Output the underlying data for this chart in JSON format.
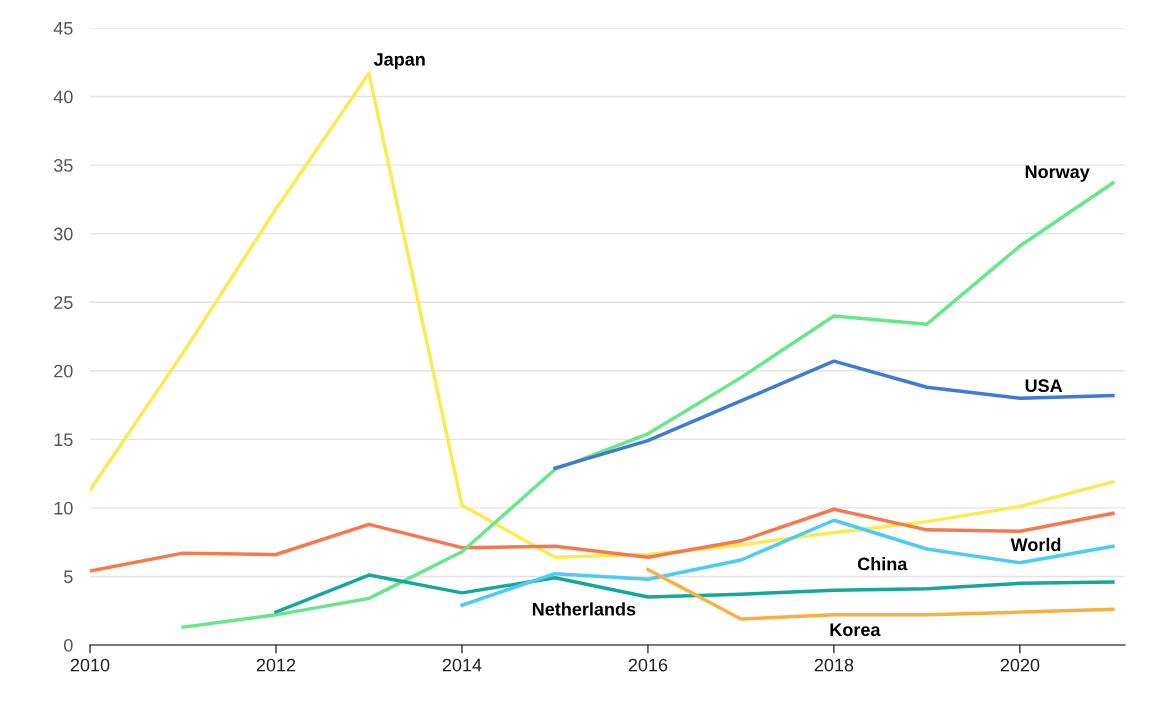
{
  "chart_data": {
    "type": "line",
    "x": [
      2010,
      2011,
      2012,
      2013,
      2014,
      2015,
      2016,
      2017,
      2018,
      2019,
      2020,
      2021
    ],
    "series": [
      {
        "name": "Japan",
        "color": "#f8ec52",
        "values": [
          11.3,
          21.3,
          31.8,
          41.7,
          10.2,
          6.4,
          6.6,
          7.3,
          8.2,
          9.0,
          10.1,
          11.9
        ]
      },
      {
        "name": "World",
        "color": "#f7784c",
        "values": [
          5.4,
          6.7,
          6.6,
          8.8,
          7.1,
          7.2,
          6.4,
          7.6,
          9.9,
          8.4,
          8.3,
          9.6
        ]
      },
      {
        "name": "Norway",
        "color": "#66e88a",
        "values": [
          null,
          1.3,
          2.2,
          3.4,
          6.8,
          12.8,
          15.4,
          19.5,
          24.0,
          23.4,
          29.1,
          33.7
        ]
      },
      {
        "name": "USA",
        "color": "#3d7bd4",
        "values": [
          null,
          null,
          null,
          null,
          null,
          12.9,
          14.9,
          17.8,
          20.7,
          18.8,
          18.0,
          18.2
        ]
      },
      {
        "name": "Netherlands",
        "color": "#13a89a",
        "values": [
          null,
          null,
          2.4,
          5.1,
          3.8,
          4.9,
          3.5,
          3.7,
          4.0,
          4.1,
          4.5,
          4.6
        ]
      },
      {
        "name": "China",
        "color": "#4dcbf5",
        "values": [
          null,
          null,
          null,
          null,
          2.9,
          5.2,
          4.8,
          6.2,
          9.1,
          7.0,
          6.0,
          7.2
        ]
      },
      {
        "name": "Korea",
        "color": "#f9b042",
        "values": [
          null,
          null,
          null,
          null,
          null,
          null,
          5.5,
          1.9,
          2.2,
          2.2,
          2.4,
          2.6
        ]
      }
    ],
    "xlim": [
      2010,
      2021.13
    ],
    "ylim": [
      0,
      45
    ],
    "xticks": [
      2010,
      2012,
      2014,
      2016,
      2018,
      2020
    ],
    "yticks": [
      0,
      5,
      10,
      15,
      20,
      25,
      30,
      35,
      40,
      45
    ],
    "grid": "y",
    "legend": false,
    "marker": "none",
    "line_style": "solid"
  }
}
